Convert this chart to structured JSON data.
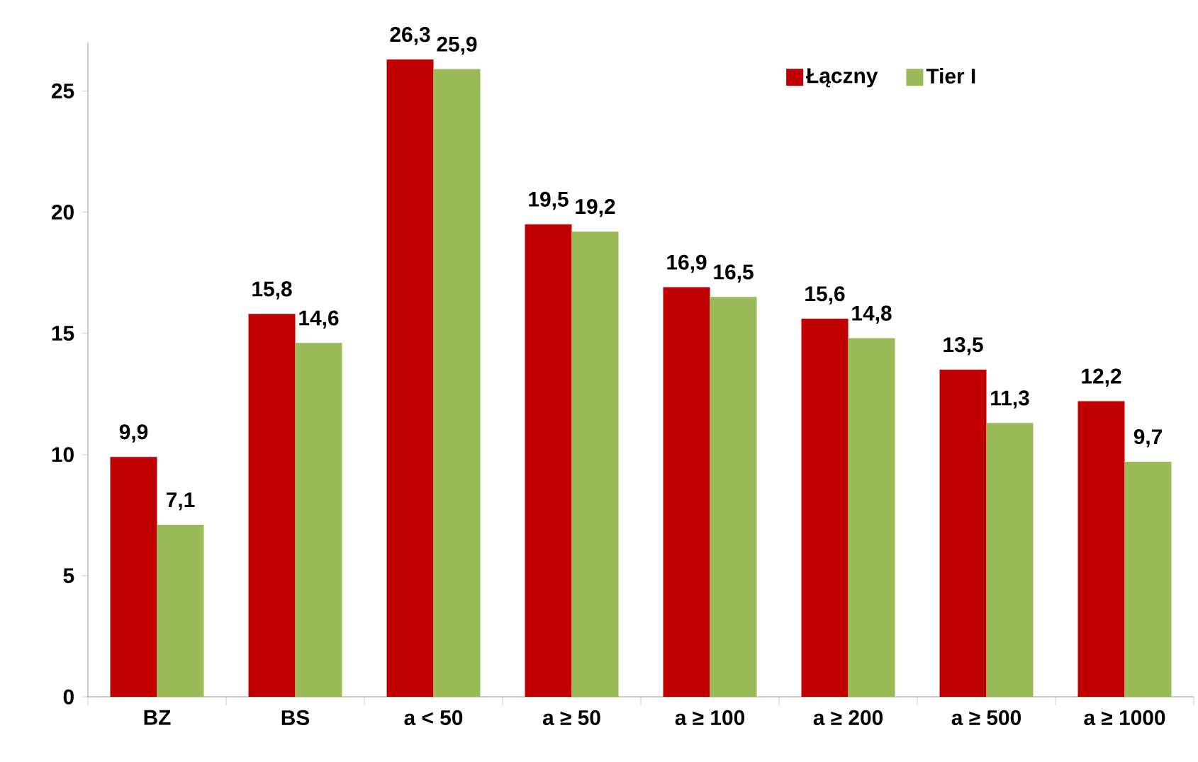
{
  "chart_data": {
    "type": "bar",
    "categories": [
      "BZ",
      "BS",
      "a < 50",
      "a ≥ 50",
      "a ≥ 100",
      "a ≥ 200",
      "a ≥ 500",
      "a ≥ 1000"
    ],
    "series": [
      {
        "name": "Łączny",
        "color": "#c00000",
        "values": [
          9.9,
          15.8,
          26.3,
          19.5,
          16.9,
          15.6,
          13.5,
          12.2
        ],
        "value_labels": [
          "9,9",
          "15,8",
          "26,3",
          "19,5",
          "16,9",
          "15,6",
          "13,5",
          "12,2"
        ]
      },
      {
        "name": "Tier I",
        "color": "#9bbb59",
        "values": [
          7.1,
          14.6,
          25.9,
          19.2,
          16.5,
          14.8,
          11.3,
          9.7
        ],
        "value_labels": [
          "7,1",
          "14,6",
          "25,9",
          "19,2",
          "16,5",
          "14,8",
          "11,3",
          "9,7"
        ]
      }
    ],
    "ylim": [
      0,
      27
    ],
    "yticks": [
      0,
      5,
      10,
      15,
      20,
      25
    ],
    "legend": "top right"
  }
}
